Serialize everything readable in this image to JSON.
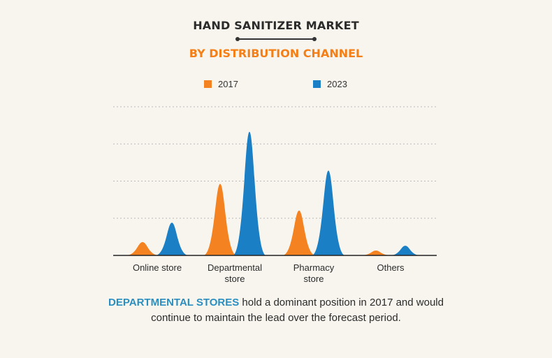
{
  "title": "HAND SANITIZER MARKET",
  "subtitle": "BY DISTRIBUTION CHANNEL",
  "legend": [
    {
      "label": "2017",
      "color": "#f58220"
    },
    {
      "label": "2023",
      "color": "#1a7fc4"
    }
  ],
  "chart_data": {
    "type": "area",
    "categories": [
      "Online store",
      "Departmental store",
      "Pharmacy store",
      "Others"
    ],
    "category_lines": [
      [
        "Online store"
      ],
      [
        "Departmental",
        "store"
      ],
      [
        "Pharmacy",
        "store"
      ],
      [
        "Others"
      ]
    ],
    "series": [
      {
        "name": "2017",
        "color": "#f58220",
        "values": [
          1.1,
          5.9,
          3.7,
          0.4
        ]
      },
      {
        "name": "2023",
        "color": "#1a7fc4",
        "values": [
          2.7,
          10.2,
          7.0,
          0.8
        ]
      }
    ],
    "ylim": [
      0,
      11
    ],
    "gridlines": [
      2.8,
      5.6,
      8.4,
      11.2
    ],
    "grid": true,
    "legend_position": "top"
  },
  "caption": {
    "highlight": "DEPARTMENTAL STORES",
    "text": " hold a dominant position in 2017 and would continue to maintain the lead over the forecast period."
  }
}
